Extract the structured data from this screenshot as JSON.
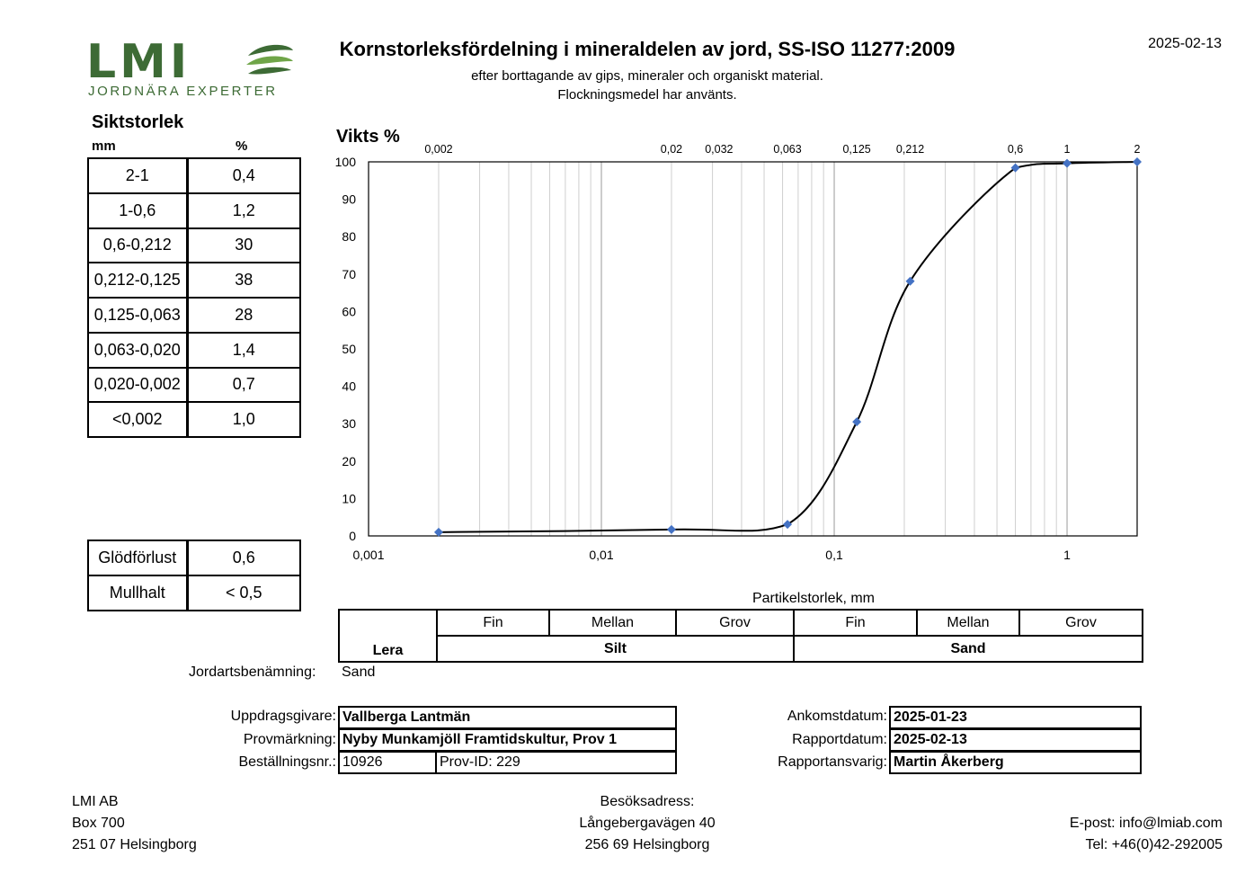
{
  "header": {
    "logo_text": "LMI",
    "logo_tagline": "JORDNÄRA EXPERTER",
    "title": "Kornstorleksfördelning i mineraldelen av jord, SS-ISO 11277:2009",
    "subtitle_1": "efter borttagande av gips, mineraler och organiskt material.",
    "subtitle_2": "Flockningsmedel har använts.",
    "date": "2025-02-13"
  },
  "sieve": {
    "title": "Siktstorlek",
    "col_mm": "mm",
    "col_pct": "%",
    "rows": [
      {
        "range": "2-1",
        "pct": "0,4"
      },
      {
        "range": "1-0,6",
        "pct": "1,2"
      },
      {
        "range": "0,6-0,212",
        "pct": "30"
      },
      {
        "range": "0,212-0,125",
        "pct": "38"
      },
      {
        "range": "0,125-0,063",
        "pct": "28"
      },
      {
        "range": "0,063-0,020",
        "pct": "1,4"
      },
      {
        "range": "0,020-0,002",
        "pct": "0,7"
      },
      {
        "range": "<0,002",
        "pct": "1,0"
      }
    ]
  },
  "extra": {
    "glodforlust_label": "Glödförlust",
    "glodforlust_value": "0,6",
    "mullhalt_label": "Mullhalt",
    "mullhalt_value": "< 0,5"
  },
  "chart_data": {
    "type": "line",
    "ylabel": "Vikts %",
    "xlabel": "Partikelstorlek, mm",
    "x_scale": "log",
    "xlim": [
      0.001,
      2
    ],
    "ylim": [
      0,
      100
    ],
    "x_ticks": [
      "0,001",
      "0,01",
      "0,1",
      "1"
    ],
    "y_ticks": [
      "0",
      "10",
      "20",
      "30",
      "40",
      "50",
      "60",
      "70",
      "80",
      "90",
      "100"
    ],
    "top_labels": [
      {
        "x": 0.002,
        "label": "0,002"
      },
      {
        "x": 0.02,
        "label": "0,02"
      },
      {
        "x": 0.032,
        "label": "0,032"
      },
      {
        "x": 0.063,
        "label": "0,063"
      },
      {
        "x": 0.125,
        "label": "0,125"
      },
      {
        "x": 0.212,
        "label": "0,212"
      },
      {
        "x": 0.6,
        "label": "0,6"
      },
      {
        "x": 1,
        "label": "1"
      },
      {
        "x": 2,
        "label": "2"
      }
    ],
    "points": [
      {
        "x": 0.002,
        "y": 1.0
      },
      {
        "x": 0.02,
        "y": 1.7
      },
      {
        "x": 0.063,
        "y": 3.1
      },
      {
        "x": 0.125,
        "y": 30.5
      },
      {
        "x": 0.212,
        "y": 68.1
      },
      {
        "x": 0.6,
        "y": 98.4
      },
      {
        "x": 1,
        "y": 99.6
      },
      {
        "x": 2,
        "y": 100
      }
    ],
    "grid": true,
    "marker_color": "#4472C4",
    "line_color": "#000000"
  },
  "classification": {
    "fin": "Fin",
    "mellan": "Mellan",
    "grov": "Grov",
    "lera": "Lera",
    "silt": "Silt",
    "sand": "Sand"
  },
  "jordart": {
    "label": "Jordartsbenämning:",
    "value": "Sand"
  },
  "order": {
    "uppdragsgivare_label": "Uppdragsgivare:",
    "uppdragsgivare": "Vallberga Lantmän",
    "provmarkning_label": "Provmärkning:",
    "provmarkning": "Nyby Munkamjöll Framtidskultur, Prov 1",
    "bestallningsnr_label": "Beställningsnr.:",
    "bestallningsnr": "10926",
    "prov_id": "Prov-ID: 229",
    "ankomstdatum_label": "Ankomstdatum:",
    "ankomstdatum": "2025-01-23",
    "rapportdatum_label": "Rapportdatum:",
    "rapportdatum": "2025-02-13",
    "rapportansvarig_label": "Rapportansvarig:",
    "rapportansvarig": "Martin Åkerberg"
  },
  "footer": {
    "company": "LMI AB",
    "box": "Box 700",
    "postal": "251 07 Helsingborg",
    "visit_label": "Besöksadress:",
    "visit_street": "Långebergavägen 40",
    "visit_postal": "256 69 Helsingborg",
    "email": "E-post: info@lmiab.com",
    "phone": "Tel: +46(0)42-292005",
    "brand_green": "#3D6B35"
  }
}
